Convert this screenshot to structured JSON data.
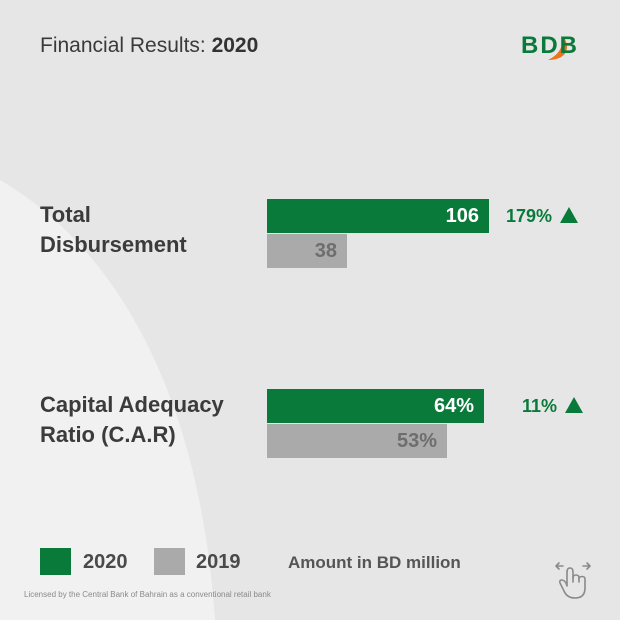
{
  "header": {
    "title_prefix": "Financial Results:",
    "title_year": "2020",
    "logo_text": "BDB"
  },
  "chart_data": {
    "type": "bar",
    "orientation": "horizontal",
    "title": "Financial Results: 2020",
    "series": [
      {
        "name": "2020",
        "color": "#0a7a3b"
      },
      {
        "name": "2019",
        "color": "#aaaaaa"
      }
    ],
    "groups": [
      {
        "label_line1": "Total",
        "label_line2": "Disbursement",
        "values": [
          106,
          38
        ],
        "display": [
          "106",
          "38"
        ],
        "growth": "179%",
        "scale_max": 106
      },
      {
        "label_line1": "Capital Adequacy",
        "label_line2": "Ratio (C.A.R)",
        "values": [
          64,
          53
        ],
        "display": [
          "64%",
          "53%"
        ],
        "growth": "11%",
        "scale_max": 64
      }
    ],
    "legend": [
      {
        "label": "2020",
        "color": "#0a7a3b"
      },
      {
        "label": "2019",
        "color": "#aaaaaa"
      }
    ],
    "note": "Amount in BD million"
  },
  "footer": {
    "text": "Licensed by the Central Bank of Bahrain as a conventional retail bank"
  },
  "icons": {
    "swipe": "swipe-hand-icon"
  },
  "colors": {
    "accent": "#0a7a3b",
    "muted": "#aaaaaa",
    "background": "#e6e6e6"
  }
}
